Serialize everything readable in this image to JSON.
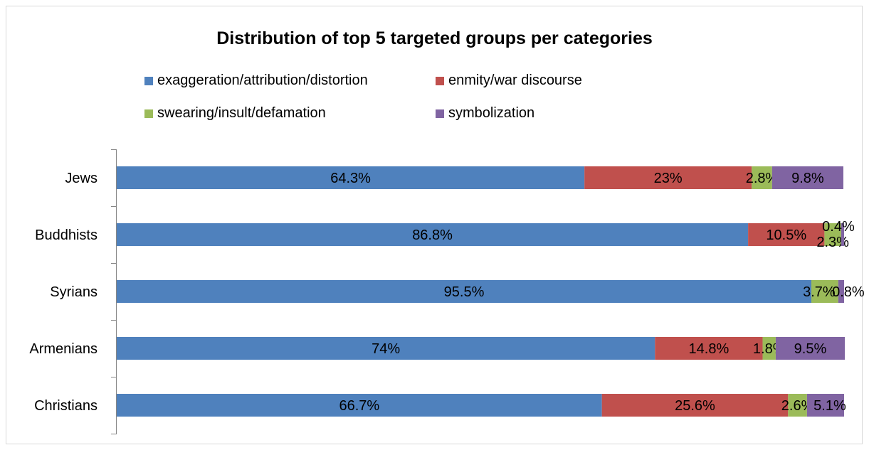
{
  "chart_data": {
    "type": "bar",
    "orientation": "horizontal",
    "stacked": "percent",
    "title": "Distribution of top 5 targeted groups per categories",
    "categories": [
      "Jews",
      "Buddhists",
      "Syrians",
      "Armenians",
      "Christians"
    ],
    "series": [
      {
        "name": "exaggeration/attribution/distortion",
        "color": "#4f81bd",
        "values": [
          64.3,
          86.8,
          95.5,
          74,
          66.7
        ],
        "labels": [
          "64.3%",
          "86.8%",
          "95.5%",
          "74%",
          "66.7%"
        ]
      },
      {
        "name": "enmity/war discourse",
        "color": "#c0504d",
        "values": [
          23,
          10.5,
          0,
          14.8,
          25.6
        ],
        "labels": [
          "23%",
          "10.5%",
          "",
          "14.8%",
          "25.6%"
        ]
      },
      {
        "name": "swearing/insult/defamation",
        "color": "#9bbb59",
        "values": [
          2.8,
          2.3,
          3.7,
          1.8,
          2.6
        ],
        "labels": [
          "2.8%",
          "2.3%",
          "3.7%",
          "1.8%",
          "2.6%"
        ]
      },
      {
        "name": "symbolization",
        "color": "#8064a2",
        "values": [
          9.8,
          0.4,
          0.8,
          9.5,
          5.1
        ],
        "labels": [
          "9.8%",
          "0.4%",
          "0.8%",
          "9.5%",
          "5.1%"
        ]
      }
    ],
    "xlim": [
      0,
      100
    ],
    "legend": "top",
    "grid": false
  }
}
